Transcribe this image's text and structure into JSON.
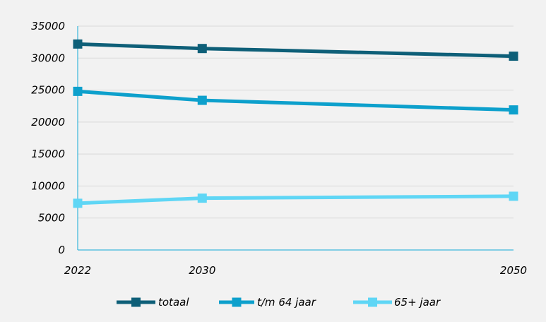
{
  "chart_data": {
    "type": "line",
    "title": "",
    "xlabel": "",
    "ylabel": "",
    "categories": [
      "2022",
      "2030",
      "2050"
    ],
    "ylim": [
      0,
      35000
    ],
    "yticks": [
      "0",
      "5000",
      "10000",
      "15000",
      "20000",
      "25000",
      "30000",
      "35000"
    ],
    "grid": true,
    "legend_position": "bottom",
    "series": [
      {
        "name": "totaal",
        "color": "#0e5f78",
        "values": [
          32200,
          31500,
          30300
        ]
      },
      {
        "name": "t/m 64 jaar",
        "color": "#0da0cc",
        "values": [
          24800,
          23400,
          21900
        ]
      },
      {
        "name": "65+ jaar",
        "color": "#5fd6f5",
        "values": [
          7300,
          8100,
          8400
        ]
      }
    ]
  }
}
